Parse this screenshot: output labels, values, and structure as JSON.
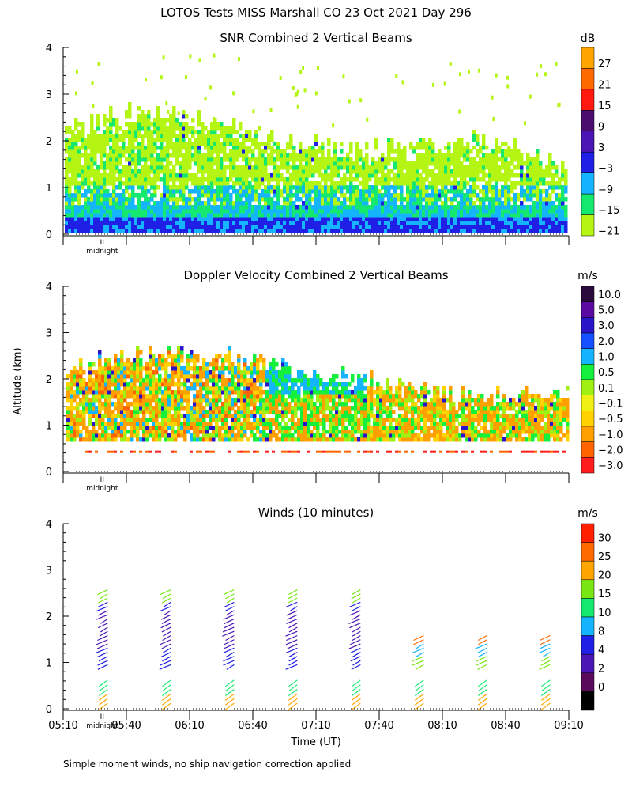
{
  "figure": {
    "title": "LOTOS Tests MISS Marshall CO  23 Oct 2021 Day 296",
    "ylabel": "Altitude (km)",
    "xlabel": "Time (UT)",
    "footnote": "Simple moment winds, no ship navigation correction applied",
    "midnight_label": "midnight",
    "midnight_mark": "II"
  },
  "chart_data": [
    {
      "type": "heatmap",
      "title": "SNR Combined 2 Vertical Beams",
      "ylim": [
        0,
        4
      ],
      "yticks": [
        "0",
        "1",
        "2",
        "3",
        "4"
      ],
      "xlim_minutes": [
        310,
        550
      ],
      "colorbar": {
        "unit": "dB",
        "labels": [
          "27",
          "21",
          "15",
          "9",
          "3",
          "−3",
          "−9",
          "−15",
          "−21"
        ],
        "colors": [
          "#ffa600",
          "#ff6a00",
          "#ff1a10",
          "#4b0d6e",
          "#4b14b4",
          "#1f1fe6",
          "#14b4ff",
          "#14e86e",
          "#b4f514"
        ]
      }
    },
    {
      "type": "heatmap",
      "title": "Doppler Velocity Combined 2 Vertical Beams",
      "ylim": [
        0,
        4
      ],
      "yticks": [
        "0",
        "1",
        "2",
        "3",
        "4"
      ],
      "xlim_minutes": [
        310,
        550
      ],
      "colorbar": {
        "unit": "m/s",
        "labels": [
          "10.0",
          "5.0",
          "3.0",
          "2.0",
          "1.0",
          "0.5",
          "0.1",
          "−0.1",
          "−0.5",
          "−1.0",
          "−2.0",
          "−3.0"
        ],
        "colors": [
          "#2a0a3c",
          "#5a0aa0",
          "#2a14c8",
          "#1450ff",
          "#14b4ff",
          "#14f03c",
          "#a0f014",
          "#f0f014",
          "#ffd200",
          "#ffa000",
          "#ff6400",
          "#ff1e1e"
        ]
      }
    },
    {
      "type": "barbs",
      "title": "Winds (10 minutes)",
      "ylim": [
        0,
        4
      ],
      "yticks": [
        "0",
        "1",
        "2",
        "3",
        "4"
      ],
      "xlim_minutes": [
        310,
        550
      ],
      "colorbar": {
        "unit": "m/s",
        "labels": [
          "30",
          "25",
          "20",
          "15",
          "10",
          "8",
          "4",
          "2",
          "0"
        ],
        "colors": [
          "#ff2000",
          "#ff6a00",
          "#ffa600",
          "#7ae614",
          "#14e86e",
          "#14b4ff",
          "#1f1fe6",
          "#4b14b4",
          "#5a0a5a",
          "#000000"
        ]
      },
      "profile_times_minutes": [
        330,
        360,
        390,
        420,
        450,
        480,
        510,
        540
      ]
    }
  ],
  "xaxis": {
    "tick_labels": [
      "05:10",
      "05:40",
      "06:10",
      "06:40",
      "07:10",
      "07:40",
      "08:10",
      "08:40",
      "09:10"
    ],
    "tick_minutes": [
      310,
      340,
      370,
      400,
      430,
      460,
      490,
      520,
      550
    ]
  }
}
